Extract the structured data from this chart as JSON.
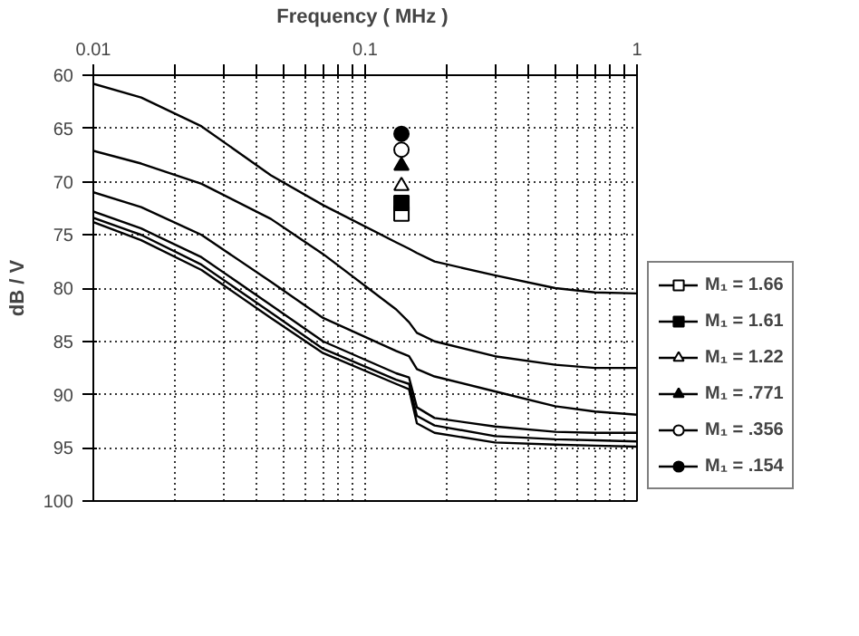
{
  "chart_data": {
    "type": "line",
    "xlabel": "Frequency  ( MHz )",
    "ylabel": "dB / V",
    "xlim": [
      0.01,
      1
    ],
    "ylim": [
      100,
      60
    ],
    "xticks": [
      0.01,
      {
        "value": 0.02,
        "label": null
      },
      {
        "value": 0.03,
        "label": null
      },
      {
        "value": 0.04,
        "label": null
      },
      {
        "value": 0.05,
        "label": null
      },
      {
        "value": 0.06,
        "label": null
      },
      {
        "value": 0.07,
        "label": null
      },
      {
        "value": 0.08,
        "label": null
      },
      {
        "value": 0.09,
        "label": null
      },
      0.1,
      {
        "value": 0.2,
        "label": null
      },
      {
        "value": 0.3,
        "label": null
      },
      {
        "value": 0.4,
        "label": null
      },
      {
        "value": 0.5,
        "label": null
      },
      {
        "value": 0.6,
        "label": null
      },
      {
        "value": 0.7,
        "label": null
      },
      {
        "value": 0.8,
        "label": null
      },
      {
        "value": 0.9,
        "label": null
      },
      1
    ],
    "yticks": [
      60,
      65,
      70,
      75,
      80,
      85,
      90,
      95,
      100
    ],
    "log": "x",
    "grid": true,
    "legend": "right",
    "line_style": "solid",
    "series": [
      {
        "name": "M₁ = 1.66",
        "color": "#000000",
        "x": [
          0.01,
          0.015,
          0.025,
          0.045,
          0.07,
          0.13,
          0.145,
          0.155,
          0.18,
          0.3,
          0.5,
          0.7,
          1
        ],
        "values": [
          73.8,
          75.5,
          78.3,
          82.8,
          86.1,
          89.0,
          89.5,
          92.7,
          93.6,
          94.5,
          94.7,
          94.8,
          94.9
        ]
      },
      {
        "name": "M₁ = 1.61",
        "color": "#000000",
        "x": [
          0.01,
          0.015,
          0.025,
          0.045,
          0.07,
          0.13,
          0.145,
          0.155,
          0.18,
          0.3,
          0.5,
          0.7,
          1
        ],
        "values": [
          73.4,
          75.0,
          77.8,
          82.3,
          85.7,
          88.6,
          89.0,
          92.0,
          92.9,
          93.9,
          94.2,
          94.3,
          94.4
        ]
      },
      {
        "name": "M₁ = 1.22",
        "color": "#000000",
        "x": [
          0.01,
          0.015,
          0.025,
          0.045,
          0.07,
          0.13,
          0.145,
          0.155,
          0.18,
          0.3,
          0.5,
          0.7,
          1
        ],
        "values": [
          72.8,
          74.4,
          77.1,
          81.6,
          85.0,
          88.0,
          88.4,
          91.2,
          92.2,
          93.0,
          93.5,
          93.6,
          93.6
        ]
      },
      {
        "name": "M₁ = .771",
        "color": "#000000",
        "x": [
          0.01,
          0.015,
          0.025,
          0.045,
          0.07,
          0.13,
          0.145,
          0.155,
          0.18,
          0.3,
          0.5,
          0.7,
          1
        ],
        "values": [
          71.0,
          72.4,
          75.0,
          79.4,
          82.8,
          85.9,
          86.4,
          87.6,
          88.3,
          89.7,
          91.1,
          91.6,
          91.9
        ]
      },
      {
        "name": "M₁ = .356",
        "color": "#000000",
        "x": [
          0.01,
          0.015,
          0.025,
          0.045,
          0.07,
          0.13,
          0.145,
          0.155,
          0.18,
          0.3,
          0.5,
          0.7,
          1
        ],
        "values": [
          67.1,
          68.3,
          70.2,
          73.5,
          76.8,
          82.0,
          83.2,
          84.2,
          85.0,
          86.4,
          87.2,
          87.5,
          87.5
        ]
      },
      {
        "name": "M₁ = .154",
        "color": "#000000",
        "x": [
          0.01,
          0.015,
          0.025,
          0.045,
          0.07,
          0.13,
          0.145,
          0.155,
          0.18,
          0.3,
          0.5,
          0.7,
          1
        ],
        "values": [
          60.8,
          62.1,
          64.8,
          69.4,
          72.2,
          75.7,
          76.3,
          76.7,
          77.5,
          78.8,
          80.0,
          80.4,
          80.5
        ]
      },
      {
        "type": "scatter",
        "color": "#ffffff",
        "marker": "square",
        "x": [
          0.136
        ],
        "values": [
          73.0
        ]
      },
      {
        "type": "scatter",
        "color": "#000000",
        "marker": "square",
        "x": [
          0.136
        ],
        "values": [
          72.0
        ]
      },
      {
        "type": "scatter",
        "color": "#ffffff",
        "marker": "triangle",
        "x": [
          0.136
        ],
        "values": [
          70.4
        ]
      },
      {
        "type": "scatter",
        "color": "#000000",
        "marker": "triangle",
        "x": [
          0.136
        ],
        "values": [
          68.5
        ]
      },
      {
        "type": "scatter",
        "color": "#ffffff",
        "marker": "circle",
        "x": [
          0.136
        ],
        "values": [
          67.0
        ]
      },
      {
        "type": "scatter",
        "color": "#000000",
        "marker": "circle",
        "x": [
          0.136
        ],
        "values": [
          65.5
        ]
      }
    ]
  }
}
